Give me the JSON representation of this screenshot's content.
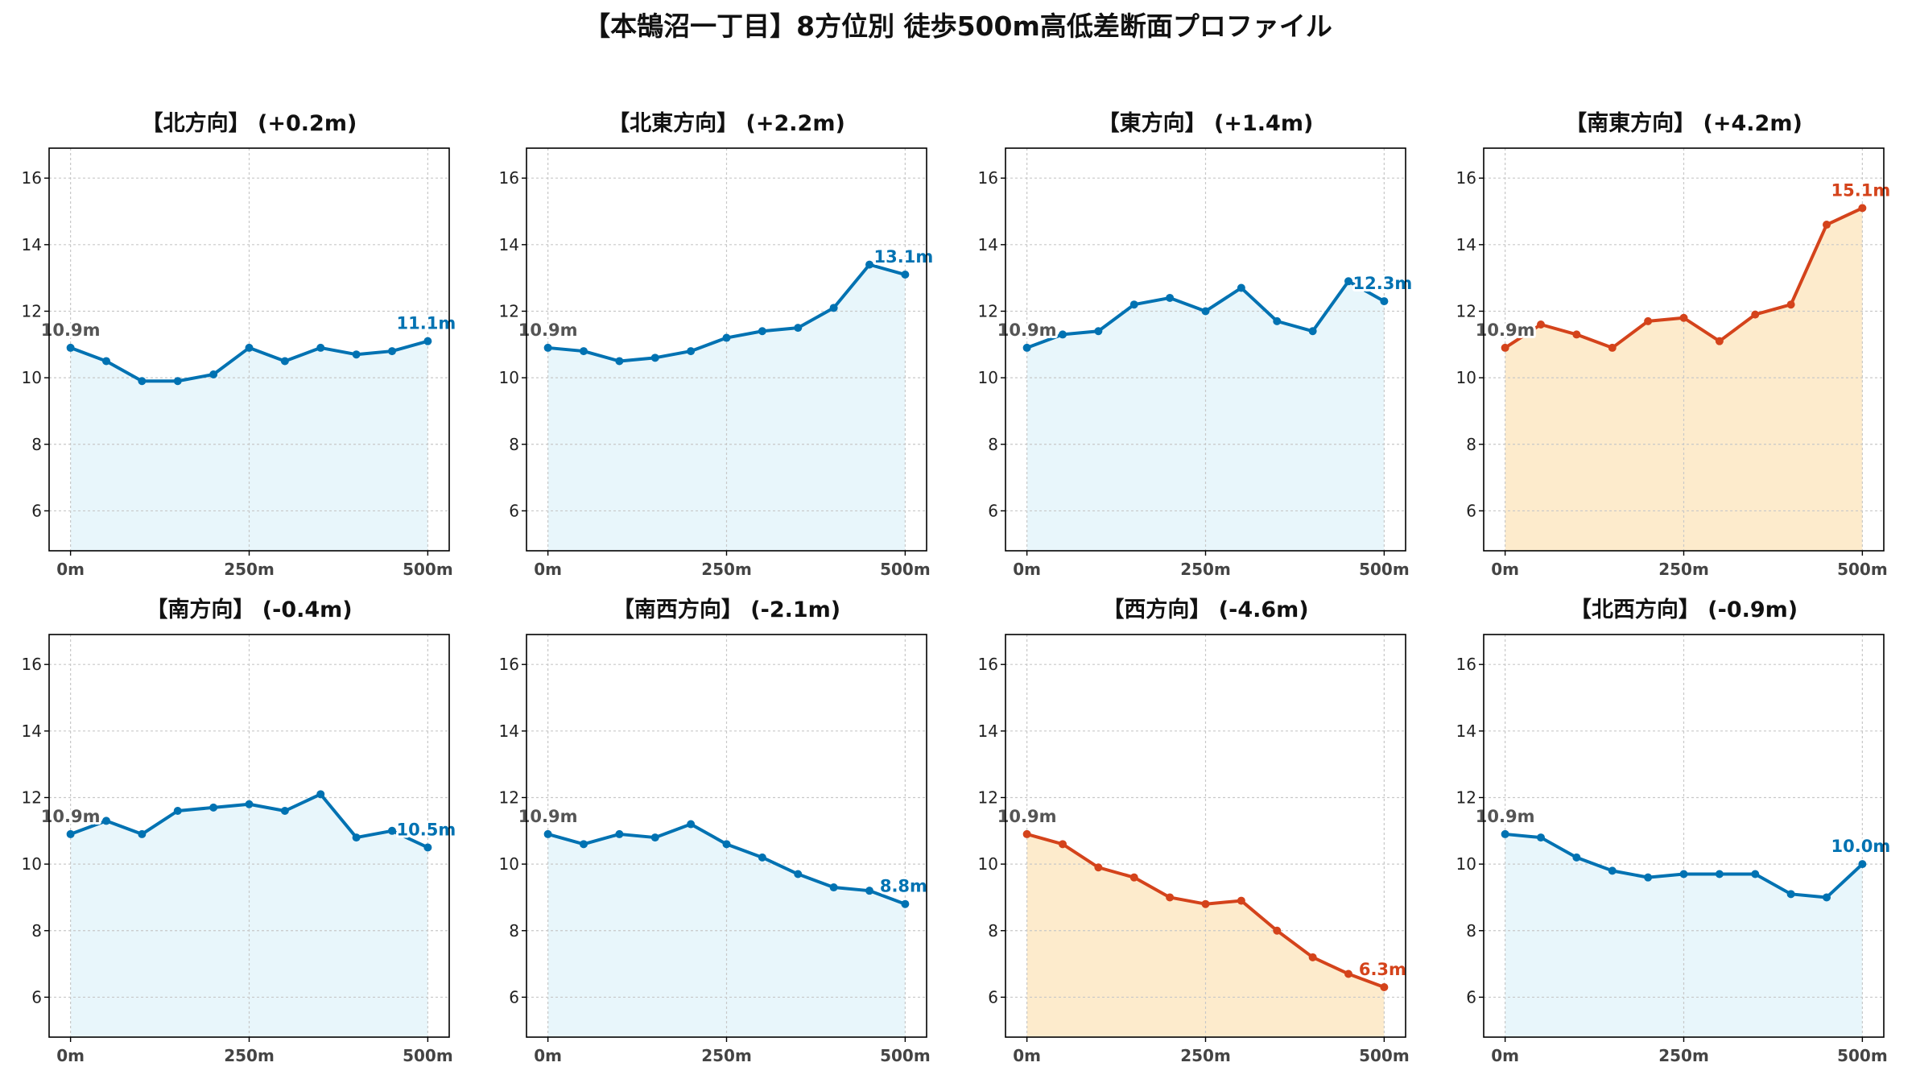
{
  "suptitle": "【本鵠沼一丁目】8方位別 徒歩500m高低差断面プロファイル",
  "colors": {
    "up_line": "#0072b2",
    "up_fill": "#e8f6fb",
    "alert_line": "#d4431b",
    "alert_fill": "#fdebcc"
  },
  "chart_data": [
    {
      "type": "area",
      "title": "【北方向】 (+0.2m)",
      "x": [
        0,
        50,
        100,
        150,
        200,
        250,
        300,
        350,
        400,
        450,
        500
      ],
      "values": [
        10.9,
        10.5,
        9.9,
        9.9,
        10.1,
        10.9,
        10.5,
        10.9,
        10.7,
        10.8,
        11.1
      ],
      "start_label": "10.9m",
      "end_label": "11.1m",
      "color": "blue",
      "xticks": [
        "0m",
        "250m",
        "500m"
      ],
      "yticks": [
        "6",
        "8",
        "10",
        "12",
        "14",
        "16"
      ],
      "ylim": [
        4.8,
        16.9
      ],
      "xlim": [
        -30,
        530
      ],
      "grid": true
    },
    {
      "type": "area",
      "title": "【北東方向】 (+2.2m)",
      "x": [
        0,
        50,
        100,
        150,
        200,
        250,
        300,
        350,
        400,
        450,
        500
      ],
      "values": [
        10.9,
        10.8,
        10.5,
        10.6,
        10.8,
        11.2,
        11.4,
        11.5,
        12.1,
        13.4,
        13.1
      ],
      "start_label": "10.9m",
      "end_label": "13.1m",
      "color": "blue",
      "xticks": [
        "0m",
        "250m",
        "500m"
      ],
      "yticks": [
        "6",
        "8",
        "10",
        "12",
        "14",
        "16"
      ],
      "ylim": [
        4.8,
        16.9
      ],
      "xlim": [
        -30,
        530
      ],
      "grid": true
    },
    {
      "type": "area",
      "title": "【東方向】 (+1.4m)",
      "x": [
        0,
        50,
        100,
        150,
        200,
        250,
        300,
        350,
        400,
        450,
        500
      ],
      "values": [
        10.9,
        11.3,
        11.4,
        12.2,
        12.4,
        12.0,
        12.7,
        11.7,
        11.4,
        12.9,
        12.3
      ],
      "start_label": "10.9m",
      "end_label": "12.3m",
      "color": "blue",
      "xticks": [
        "0m",
        "250m",
        "500m"
      ],
      "yticks": [
        "6",
        "8",
        "10",
        "12",
        "14",
        "16"
      ],
      "ylim": [
        4.8,
        16.9
      ],
      "xlim": [
        -30,
        530
      ],
      "grid": true
    },
    {
      "type": "area",
      "title": "【南東方向】 (+4.2m)",
      "x": [
        0,
        50,
        100,
        150,
        200,
        250,
        300,
        350,
        400,
        450,
        500
      ],
      "values": [
        10.9,
        11.6,
        11.3,
        10.9,
        11.7,
        11.8,
        11.1,
        11.9,
        12.2,
        14.6,
        15.1
      ],
      "start_label": "10.9m",
      "end_label": "15.1m",
      "color": "orange",
      "xticks": [
        "0m",
        "250m",
        "500m"
      ],
      "yticks": [
        "6",
        "8",
        "10",
        "12",
        "14",
        "16"
      ],
      "ylim": [
        4.8,
        16.9
      ],
      "xlim": [
        -30,
        530
      ],
      "grid": true
    },
    {
      "type": "area",
      "title": "【南方向】 (-0.4m)",
      "x": [
        0,
        50,
        100,
        150,
        200,
        250,
        300,
        350,
        400,
        450,
        500
      ],
      "values": [
        10.9,
        11.3,
        10.9,
        11.6,
        11.7,
        11.8,
        11.6,
        12.1,
        10.8,
        11.0,
        10.5
      ],
      "start_label": "10.9m",
      "end_label": "10.5m",
      "color": "blue",
      "xticks": [
        "0m",
        "250m",
        "500m"
      ],
      "yticks": [
        "6",
        "8",
        "10",
        "12",
        "14",
        "16"
      ],
      "ylim": [
        4.8,
        16.9
      ],
      "xlim": [
        -30,
        530
      ],
      "grid": true
    },
    {
      "type": "area",
      "title": "【南西方向】 (-2.1m)",
      "x": [
        0,
        50,
        100,
        150,
        200,
        250,
        300,
        350,
        400,
        450,
        500
      ],
      "values": [
        10.9,
        10.6,
        10.9,
        10.8,
        11.2,
        10.6,
        10.2,
        9.7,
        9.3,
        9.2,
        8.8
      ],
      "start_label": "10.9m",
      "end_label": "8.8m",
      "color": "blue",
      "xticks": [
        "0m",
        "250m",
        "500m"
      ],
      "yticks": [
        "6",
        "8",
        "10",
        "12",
        "14",
        "16"
      ],
      "ylim": [
        4.8,
        16.9
      ],
      "xlim": [
        -30,
        530
      ],
      "grid": true
    },
    {
      "type": "area",
      "title": "【西方向】 (-4.6m)",
      "x": [
        0,
        50,
        100,
        150,
        200,
        250,
        300,
        350,
        400,
        450,
        500
      ],
      "values": [
        10.9,
        10.6,
        9.9,
        9.6,
        9.0,
        8.8,
        8.9,
        8.0,
        7.2,
        6.7,
        6.3
      ],
      "start_label": "10.9m",
      "end_label": "6.3m",
      "color": "orange",
      "xticks": [
        "0m",
        "250m",
        "500m"
      ],
      "yticks": [
        "6",
        "8",
        "10",
        "12",
        "14",
        "16"
      ],
      "ylim": [
        4.8,
        16.9
      ],
      "xlim": [
        -30,
        530
      ],
      "grid": true
    },
    {
      "type": "area",
      "title": "【北西方向】 (-0.9m)",
      "x": [
        0,
        50,
        100,
        150,
        200,
        250,
        300,
        350,
        400,
        450,
        500
      ],
      "values": [
        10.9,
        10.8,
        10.2,
        9.8,
        9.6,
        9.7,
        9.7,
        9.7,
        9.1,
        9.0,
        10.0
      ],
      "start_label": "10.9m",
      "end_label": "10.0m",
      "color": "blue",
      "xticks": [
        "0m",
        "250m",
        "500m"
      ],
      "yticks": [
        "6",
        "8",
        "10",
        "12",
        "14",
        "16"
      ],
      "ylim": [
        4.8,
        16.9
      ],
      "xlim": [
        -30,
        530
      ],
      "grid": true
    }
  ]
}
